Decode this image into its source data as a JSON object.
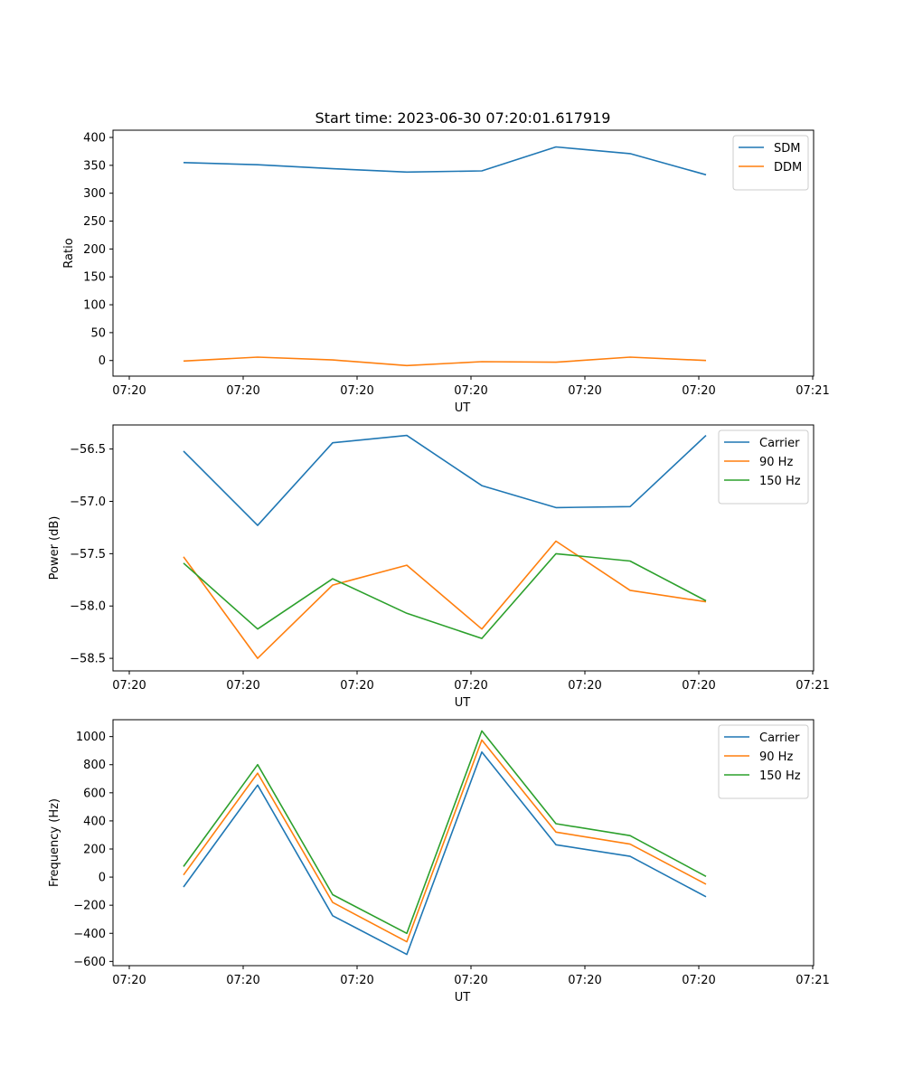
{
  "title": "Start time: 2023-06-30 07:20:01.617919",
  "chart_data": [
    {
      "type": "line",
      "xlabel": "UT",
      "ylabel": "Ratio",
      "ylim": [
        -28,
        413
      ],
      "yticks": [
        0,
        50,
        100,
        150,
        200,
        250,
        300,
        350,
        400
      ],
      "xtick_labels": [
        "07:20",
        "07:20",
        "07:20",
        "07:20",
        "07:20",
        "07:20",
        "07:20",
        "07:21"
      ],
      "legend_position": "upper right",
      "x": [
        1,
        2,
        3,
        4,
        5,
        6,
        7,
        8
      ],
      "series": [
        {
          "name": "SDM",
          "color": "#1f77b4",
          "values": [
            355,
            351,
            344,
            338,
            340,
            383,
            371,
            333
          ]
        },
        {
          "name": "DDM",
          "color": "#ff7f0e",
          "values": [
            -1,
            6,
            1,
            -9,
            -2,
            -3,
            6,
            0
          ]
        }
      ]
    },
    {
      "type": "line",
      "xlabel": "UT",
      "ylabel": "Power (dB)",
      "ylim": [
        -58.62,
        -56.27
      ],
      "yticks": [
        -58.5,
        -58.0,
        -57.5,
        -57.0,
        -56.5
      ],
      "ytick_labels": [
        "−58.5",
        "−58.0",
        "−57.5",
        "−57.0",
        "−56.5"
      ],
      "xtick_labels": [
        "07:20",
        "07:20",
        "07:20",
        "07:20",
        "07:20",
        "07:20",
        "07:20",
        "07:21"
      ],
      "legend_position": "upper right",
      "x": [
        1,
        2,
        3,
        4,
        5,
        6,
        7,
        8
      ],
      "series": [
        {
          "name": "Carrier",
          "color": "#1f77b4",
          "values": [
            -56.52,
            -57.23,
            -56.44,
            -56.37,
            -56.85,
            -57.06,
            -57.05,
            -56.37
          ]
        },
        {
          "name": "90 Hz",
          "color": "#ff7f0e",
          "values": [
            -57.53,
            -58.5,
            -57.8,
            -57.61,
            -58.22,
            -57.38,
            -57.85,
            -57.96
          ]
        },
        {
          "name": "150 Hz",
          "color": "#2ca02c",
          "values": [
            -57.59,
            -58.22,
            -57.74,
            -58.07,
            -58.31,
            -57.5,
            -57.57,
            -57.95
          ]
        }
      ]
    },
    {
      "type": "line",
      "xlabel": "UT",
      "ylabel": "Frequency (Hz)",
      "ylim": [
        -630,
        1120
      ],
      "yticks": [
        -600,
        -400,
        -200,
        0,
        200,
        400,
        600,
        800,
        1000
      ],
      "ytick_labels": [
        "−600",
        "−400",
        "−200",
        "0",
        "200",
        "400",
        "600",
        "800",
        "1000"
      ],
      "xtick_labels": [
        "07:20",
        "07:20",
        "07:20",
        "07:20",
        "07:20",
        "07:20",
        "07:20",
        "07:21"
      ],
      "legend_position": "upper right",
      "x": [
        1,
        2,
        3,
        4,
        5,
        6,
        7,
        8
      ],
      "series": [
        {
          "name": "Carrier",
          "color": "#1f77b4",
          "values": [
            -70,
            655,
            -275,
            -550,
            890,
            230,
            148,
            -140
          ]
        },
        {
          "name": "90 Hz",
          "color": "#ff7f0e",
          "values": [
            15,
            740,
            -180,
            -460,
            975,
            320,
            235,
            -50
          ]
        },
        {
          "name": "150 Hz",
          "color": "#2ca02c",
          "values": [
            75,
            800,
            -125,
            -400,
            1040,
            380,
            295,
            5
          ]
        }
      ]
    }
  ]
}
